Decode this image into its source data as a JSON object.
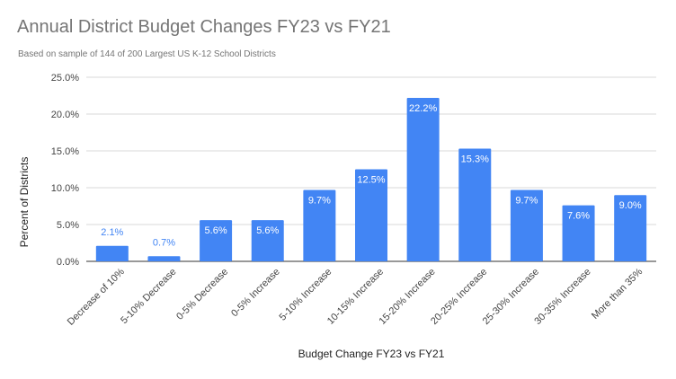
{
  "chart_data": {
    "type": "bar",
    "title": "Annual District Budget Changes FY23 vs FY21",
    "subtitle": "Based on sample of 144 of 200 Largest US K-12 School Districts",
    "xlabel": "Budget Change FY23 vs FY21",
    "ylabel": "Percent of Districts",
    "categories": [
      "Decrease of 10%",
      "5-10% Decrease",
      "0-5% Decrease",
      "0-5% Increase",
      "5-10% Increase",
      "10-15% Increase",
      "15-20% Increase",
      "20-25% Increase",
      "25-30% Increase",
      "30-35% Increase",
      "More than 35%"
    ],
    "values": [
      2.1,
      0.7,
      5.6,
      5.6,
      9.7,
      12.5,
      22.2,
      15.3,
      9.7,
      7.6,
      9.0
    ],
    "value_labels": [
      "2.1%",
      "0.7%",
      "5.6%",
      "5.6%",
      "9.7%",
      "12.5%",
      "22.2%",
      "15.3%",
      "9.7%",
      "7.6%",
      "9.0%"
    ],
    "yticks": [
      0,
      5,
      10,
      15,
      20,
      25
    ],
    "ytick_labels": [
      "0.0%",
      "5.0%",
      "10.0%",
      "15.0%",
      "20.0%",
      "25.0%"
    ],
    "ylim": [
      0,
      25
    ],
    "grid": true,
    "legend": "none",
    "bar_color": "#4285f4"
  }
}
